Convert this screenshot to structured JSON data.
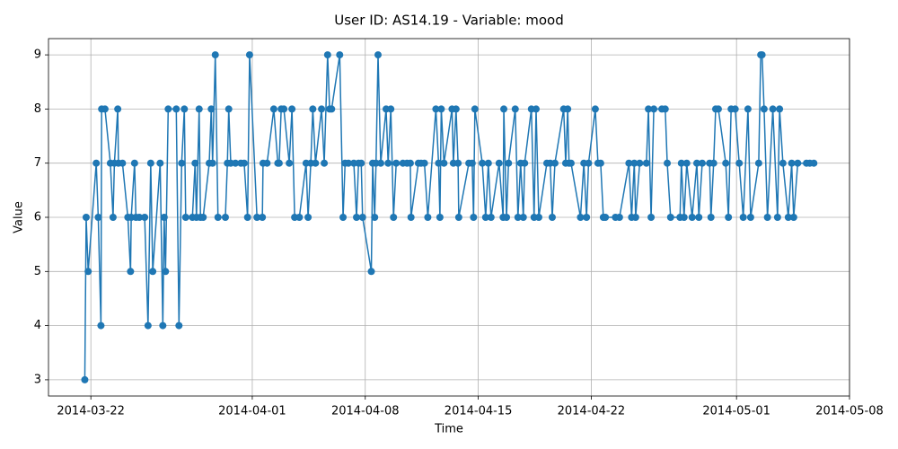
{
  "chart_data": {
    "type": "line",
    "title": "User ID: AS14.19 - Variable: mood",
    "xlabel": "Time",
    "ylabel": "Value",
    "color": "#1f77b4",
    "grid": true,
    "x": [
      "2014-03-21 15:00",
      "2014-03-21 17:00",
      "2014-03-21 20:00",
      "2014-03-22 08:00",
      "2014-03-22 11:00",
      "2014-03-22 15:00",
      "2014-03-22 16:00",
      "2014-03-22 21:00",
      "2014-03-23 05:00",
      "2014-03-23 09:00",
      "2014-03-23 11:00",
      "2014-03-23 16:00",
      "2014-03-23 17:00",
      "2014-03-23 23:00",
      "2014-03-24 07:00",
      "2014-03-24 11:00",
      "2014-03-24 12:00",
      "2014-03-24 17:00",
      "2014-03-24 19:00",
      "2014-03-25 00:00",
      "2014-03-25 08:00",
      "2014-03-25 13:00",
      "2014-03-25 17:00",
      "2014-03-25 20:00",
      "2014-03-26 07:00",
      "2014-03-26 11:00",
      "2014-03-26 13:00",
      "2014-03-26 15:00",
      "2014-03-26 19:00",
      "2014-03-27 07:00",
      "2014-03-27 11:00",
      "2014-03-27 15:00",
      "2014-03-27 19:00",
      "2014-03-27 21:00",
      "2014-03-28 07:00",
      "2014-03-28 11:00",
      "2014-03-28 13:00",
      "2014-03-28 17:00",
      "2014-03-28 19:00",
      "2014-03-28 23:00",
      "2014-03-29 08:00",
      "2014-03-29 11:00",
      "2014-03-29 13:00",
      "2014-03-29 17:00",
      "2014-03-29 21:00",
      "2014-03-30 08:00",
      "2014-03-30 11:00",
      "2014-03-30 13:00",
      "2014-03-30 16:00",
      "2014-03-30 23:00",
      "2014-03-31 07:00",
      "2014-03-31 12:00",
      "2014-03-31 17:00",
      "2014-03-31 20:00",
      "2014-04-01 07:00",
      "2014-04-01 15:00",
      "2014-04-01 16:00",
      "2014-04-01 22:00",
      "2014-04-02 08:00",
      "2014-04-02 14:00",
      "2014-04-02 16:00",
      "2014-04-02 19:00",
      "2014-04-02 23:00",
      "2014-04-03 07:00",
      "2014-04-03 11:00",
      "2014-04-03 15:00",
      "2014-04-03 22:00",
      "2014-04-04 08:00",
      "2014-04-04 11:00",
      "2014-04-04 15:00",
      "2014-04-04 18:00",
      "2014-04-04 22:00",
      "2014-04-05 07:00",
      "2014-04-05 11:00",
      "2014-04-05 16:00",
      "2014-04-05 19:00",
      "2014-04-05 22:00",
      "2014-04-06 10:00",
      "2014-04-06 15:00",
      "2014-04-06 18:00",
      "2014-04-06 23:00",
      "2014-04-07 07:00",
      "2014-04-07 11:00",
      "2014-04-07 14:00",
      "2014-04-07 18:00",
      "2014-04-07 20:00",
      "2014-04-08 09:00",
      "2014-04-08 11:00",
      "2014-04-08 14:00",
      "2014-04-08 16:00",
      "2014-04-08 19:00",
      "2014-04-08 23:00",
      "2014-04-09 07:00",
      "2014-04-09 10:00",
      "2014-04-09 14:00",
      "2014-04-09 18:00",
      "2014-04-09 22:00",
      "2014-04-10 08:00",
      "2014-04-10 14:00",
      "2014-04-10 19:00",
      "2014-04-10 20:00",
      "2014-04-11 07:00",
      "2014-04-11 11:00",
      "2014-04-11 16:00",
      "2014-04-11 21:00",
      "2014-04-12 09:00",
      "2014-04-12 13:00",
      "2014-04-12 15:00",
      "2014-04-12 17:00",
      "2014-04-12 21:00",
      "2014-04-13 09:00",
      "2014-04-13 11:00",
      "2014-04-13 15:00",
      "2014-04-13 18:00",
      "2014-04-13 19:00",
      "2014-04-14 10:00",
      "2014-04-14 15:00",
      "2014-04-14 17:00",
      "2014-04-14 19:00",
      "2014-04-15 06:00",
      "2014-04-15 11:00",
      "2014-04-15 15:00",
      "2014-04-15 19:00",
      "2014-04-16 07:00",
      "2014-04-16 13:00",
      "2014-04-16 14:00",
      "2014-04-16 18:00",
      "2014-04-16 21:00",
      "2014-04-17 07:00",
      "2014-04-17 11:00",
      "2014-04-17 15:00",
      "2014-04-17 19:00",
      "2014-04-17 21:00",
      "2014-04-18 07:00",
      "2014-04-18 11:00",
      "2014-04-18 14:00",
      "2014-04-18 18:00",
      "2014-04-19 06:00",
      "2014-04-19 11:00",
      "2014-04-19 14:00",
      "2014-04-19 18:00",
      "2014-04-20 07:00",
      "2014-04-20 10:00",
      "2014-04-20 13:00",
      "2014-04-20 15:00",
      "2014-04-20 18:00",
      "2014-04-21 08:00",
      "2014-04-21 13:00",
      "2014-04-21 17:00",
      "2014-04-21 20:00",
      "2014-04-22 06:00",
      "2014-04-22 10:00",
      "2014-04-22 14:00",
      "2014-04-22 18:00",
      "2014-04-22 21:00",
      "2014-04-23 12:00",
      "2014-04-23 18:00",
      "2014-04-24 08:00",
      "2014-04-24 12:00",
      "2014-04-24 16:00",
      "2014-04-24 18:00",
      "2014-04-25 00:00",
      "2014-04-25 10:00",
      "2014-04-25 13:00",
      "2014-04-25 17:00",
      "2014-04-25 21:00",
      "2014-04-26 09:00",
      "2014-04-26 14:00",
      "2014-04-26 17:00",
      "2014-04-26 22:00",
      "2014-04-27 12:00",
      "2014-04-27 14:00",
      "2014-04-27 18:00",
      "2014-04-27 22:00",
      "2014-04-28 06:00",
      "2014-04-28 13:00",
      "2014-04-28 16:00",
      "2014-04-28 21:00",
      "2014-04-29 08:00",
      "2014-04-29 10:00",
      "2014-04-29 14:00",
      "2014-04-29 17:00",
      "2014-04-29 21:00",
      "2014-04-30 08:00",
      "2014-04-30 12:00",
      "2014-04-30 16:00",
      "2014-04-30 22:00",
      "2014-05-01 04:00",
      "2014-05-01 10:00",
      "2014-05-01 17:00",
      "2014-05-01 21:00",
      "2014-05-02 09:00",
      "2014-05-02 12:00",
      "2014-05-02 14:00",
      "2014-05-02 17:00",
      "2014-05-02 22:00",
      "2014-05-03 06:00",
      "2014-05-03 13:00",
      "2014-05-03 16:00",
      "2014-05-03 21:00",
      "2014-05-04 05:00",
      "2014-05-04 10:00",
      "2014-05-04 13:00",
      "2014-05-04 19:00",
      "2014-05-05 08:00",
      "2014-05-05 13:00",
      "2014-05-05 19:00"
    ],
    "values": [
      3,
      6,
      5,
      7,
      6,
      4,
      8,
      8,
      7,
      6,
      7,
      8,
      7,
      7,
      6,
      5,
      6,
      7,
      6,
      6,
      6,
      4,
      7,
      5,
      7,
      4,
      6,
      5,
      8,
      8,
      4,
      7,
      8,
      6,
      6,
      7,
      6,
      8,
      6,
      6,
      7,
      8,
      7,
      9,
      6,
      6,
      7,
      8,
      7,
      7,
      7,
      7,
      6,
      9,
      6,
      6,
      7,
      7,
      8,
      7,
      7,
      8,
      8,
      7,
      8,
      6,
      6,
      7,
      6,
      7,
      8,
      7,
      8,
      7,
      9,
      8,
      8,
      9,
      6,
      7,
      7,
      7,
      6,
      7,
      7,
      6,
      5,
      7,
      6,
      7,
      9,
      7,
      8,
      7,
      8,
      6,
      7,
      7,
      7,
      7,
      6,
      7,
      7,
      7,
      6,
      8,
      7,
      6,
      8,
      7,
      8,
      7,
      8,
      7,
      6,
      7,
      7,
      6,
      8,
      7,
      6,
      7,
      6,
      7,
      6,
      8,
      6,
      7,
      8,
      6,
      7,
      6,
      7,
      8,
      6,
      8,
      6,
      7,
      7,
      6,
      7,
      8,
      7,
      8,
      7,
      7,
      6,
      7,
      6,
      7,
      8,
      7,
      7,
      6,
      6,
      6,
      6,
      7,
      6,
      7,
      6,
      7,
      7,
      8,
      6,
      8,
      8,
      8,
      7,
      6,
      6,
      7,
      6,
      7,
      6,
      7,
      6,
      7,
      7,
      6,
      7,
      8,
      8,
      7,
      6,
      8,
      8,
      7,
      6,
      8,
      6,
      7,
      9,
      9,
      8,
      6,
      8,
      6,
      8,
      7,
      6,
      7,
      6,
      7,
      7,
      7,
      7
    ],
    "xlim": [
      "2014-03-19 09:00",
      "2014-05-08 00:00"
    ],
    "xticks": [
      "2014-03-22",
      "2014-04-01",
      "2014-04-08",
      "2014-04-15",
      "2014-04-22",
      "2014-05-01",
      "2014-05-08"
    ],
    "ylim": [
      2.7,
      9.3
    ],
    "yticks": [
      3,
      4,
      5,
      6,
      7,
      8,
      9
    ]
  }
}
